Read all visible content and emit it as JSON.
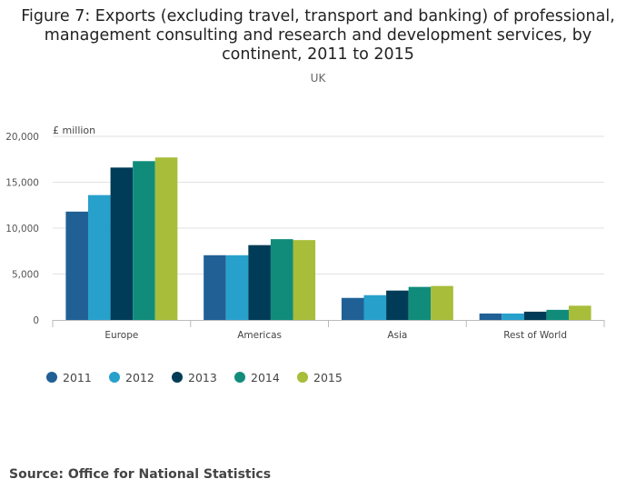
{
  "chart_data": {
    "type": "bar",
    "title": "Figure 7: Exports (excluding travel, transport and banking) of professional, management consulting and research and development services, by continent, 2011 to 2015",
    "subtitle": "UK",
    "ylabel": "£ million",
    "xlabel": "",
    "ylim": [
      0,
      20000
    ],
    "yticks": [
      0,
      5000,
      10000,
      15000,
      20000
    ],
    "ytick_labels": [
      "0",
      "5,000",
      "10,000",
      "15,000",
      "20,000"
    ],
    "categories": [
      "Europe",
      "Americas",
      "Asia",
      "Rest of World"
    ],
    "series": [
      {
        "name": "2011",
        "color": "#206095",
        "values": [
          11800,
          7050,
          2400,
          700
        ]
      },
      {
        "name": "2012",
        "color": "#27a0cc",
        "values": [
          13600,
          7050,
          2700,
          700
        ]
      },
      {
        "name": "2013",
        "color": "#003c57",
        "values": [
          16600,
          8150,
          3200,
          900
        ]
      },
      {
        "name": "2014",
        "color": "#118c7b",
        "values": [
          17300,
          8800,
          3600,
          1100
        ]
      },
      {
        "name": "2015",
        "color": "#a8bd3a",
        "values": [
          17700,
          8700,
          3700,
          1550
        ]
      }
    ],
    "grid": true,
    "legend_position": "bottom-left"
  },
  "source": "Source: Office for National Statistics"
}
